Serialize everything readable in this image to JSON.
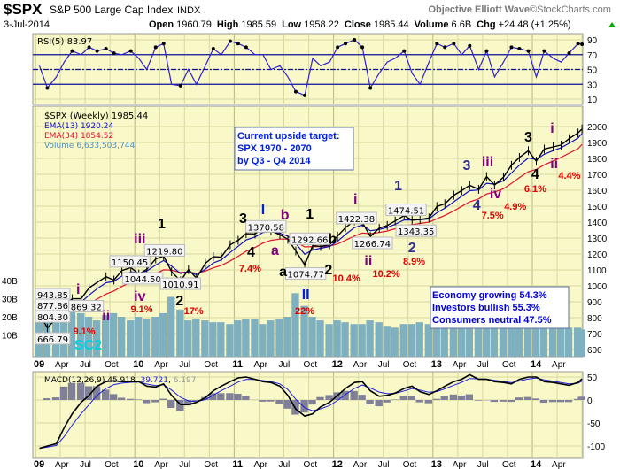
{
  "header": {
    "symbol": "$SPX",
    "name": "S&P 500 Large Cap Index",
    "exchange": "INDX",
    "brand": "Objective Elliott Wave",
    "brand_suffix": "©StockCharts.com",
    "date": "3-Jul-2014",
    "open_label": "Open",
    "open": "1960.79",
    "high_label": "High",
    "high": "1985.59",
    "low_label": "Low",
    "low": "1958.22",
    "close_label": "Close",
    "close": "1985.44",
    "volume_label": "Volume",
    "volume": "6.6B",
    "chg_label": "Chg",
    "chg": "+24.48 (+1.25%)",
    "up_arrow_icon": "triangle-up",
    "up_color": "#00aa00"
  },
  "colors": {
    "panel_bg": "#f8f8c8",
    "grid": "#d8d8a0",
    "price": "#000000",
    "ema13": "#1010c0",
    "ema34": "#e01030",
    "volume": "#7fb0c0",
    "rsi": "#3020d0",
    "macd": "#000000",
    "signal": "#2020e0",
    "histogram": "#808098",
    "wave_red": "#e00000",
    "wave_purple": "#800080",
    "wave_blue": "#0020e0",
    "wave_navy": "#303090",
    "wave_cyan": "#00d0e0"
  },
  "chart_data": [
    {
      "type": "line",
      "panel": "rsi",
      "legend": "RSI(5) 83.97",
      "ylim": [
        0,
        100
      ],
      "yticks": [
        "90",
        "70",
        "50",
        "30",
        "10"
      ],
      "reference_lines": [
        70,
        50,
        30
      ],
      "x": [
        2009.04,
        2009.12,
        2009.21,
        2009.29,
        2009.37,
        2009.46,
        2009.54,
        2009.62,
        2009.71,
        2009.79,
        2009.87,
        2009.96,
        2010.04,
        2010.12,
        2010.21,
        2010.29,
        2010.37,
        2010.46,
        2010.54,
        2010.62,
        2010.71,
        2010.79,
        2010.87,
        2010.96,
        2011.04,
        2011.12,
        2011.21,
        2011.29,
        2011.37,
        2011.46,
        2011.54,
        2011.62,
        2011.71,
        2011.79,
        2011.87,
        2011.96,
        2012.04,
        2012.12,
        2012.21,
        2012.29,
        2012.37,
        2012.46,
        2012.54,
        2012.62,
        2012.71,
        2012.79,
        2012.87,
        2012.96,
        2013.04,
        2013.12,
        2013.21,
        2013.29,
        2013.37,
        2013.46,
        2013.54,
        2013.62,
        2013.71,
        2013.79,
        2013.87,
        2013.96,
        2014.04,
        2014.12,
        2014.21,
        2014.29,
        2014.37,
        2014.46,
        2014.5
      ],
      "values": [
        55,
        25,
        40,
        60,
        75,
        70,
        80,
        75,
        78,
        72,
        70,
        75,
        65,
        50,
        80,
        85,
        30,
        28,
        50,
        30,
        55,
        78,
        70,
        88,
        85,
        80,
        70,
        70,
        50,
        55,
        40,
        20,
        15,
        65,
        55,
        60,
        80,
        85,
        90,
        80,
        25,
        45,
        60,
        65,
        75,
        45,
        30,
        60,
        85,
        80,
        85,
        70,
        82,
        50,
        75,
        40,
        60,
        80,
        78,
        75,
        40,
        75,
        65,
        60,
        72,
        85,
        84
      ]
    },
    {
      "type": "line",
      "panel": "price",
      "title": "$SPX (Weekly) 1985.44",
      "legend": [
        {
          "name": "EMA(13) 1920.24",
          "color": "#1010c0"
        },
        {
          "name": "EMA(34) 1854.52",
          "color": "#e01030"
        },
        {
          "name": "Volume 6,633,503,744",
          "color": "#5090c0"
        }
      ],
      "yscale": "linear",
      "ylim": [
        560,
        2080
      ],
      "yticks": [
        "2000",
        "1900",
        "1800",
        "1700",
        "1600",
        "1500",
        "1400",
        "1300",
        "1200",
        "1100",
        "1000",
        "900",
        "800",
        "700",
        "600"
      ],
      "volume_ticks": [
        "40B",
        "30B",
        "20B",
        "10B"
      ],
      "xticks": [
        "09",
        "Apr",
        "Jul",
        "Oct",
        "10",
        "Apr",
        "Jul",
        "Oct",
        "11",
        "Apr",
        "Jul",
        "Oct",
        "12",
        "Apr",
        "Jul",
        "Oct",
        "13",
        "Apr",
        "Jul",
        "Oct",
        "14",
        "Apr"
      ],
      "x": [
        2009.04,
        2009.12,
        2009.21,
        2009.29,
        2009.37,
        2009.46,
        2009.54,
        2009.62,
        2009.71,
        2009.79,
        2009.87,
        2009.96,
        2010.04,
        2010.12,
        2010.21,
        2010.29,
        2010.37,
        2010.46,
        2010.54,
        2010.62,
        2010.71,
        2010.79,
        2010.87,
        2010.96,
        2011.04,
        2011.12,
        2011.21,
        2011.29,
        2011.37,
        2011.46,
        2011.54,
        2011.62,
        2011.71,
        2011.79,
        2011.87,
        2011.96,
        2012.04,
        2012.12,
        2012.21,
        2012.29,
        2012.37,
        2012.46,
        2012.54,
        2012.62,
        2012.71,
        2012.79,
        2012.87,
        2012.96,
        2013.04,
        2013.12,
        2013.21,
        2013.29,
        2013.37,
        2013.46,
        2013.54,
        2013.62,
        2013.71,
        2013.79,
        2013.87,
        2013.96,
        2014.04,
        2014.12,
        2014.21,
        2014.29,
        2014.37,
        2014.46,
        2014.5
      ],
      "close": [
        826,
        735,
        798,
        873,
        919,
        919,
        987,
        1021,
        1057,
        1036,
        1096,
        1115,
        1074,
        1104,
        1169,
        1187,
        1089,
        1031,
        1102,
        1049,
        1141,
        1183,
        1181,
        1258,
        1286,
        1327,
        1326,
        1364,
        1345,
        1321,
        1292,
        1219,
        1131,
        1253,
        1247,
        1258,
        1312,
        1366,
        1408,
        1398,
        1310,
        1362,
        1379,
        1407,
        1441,
        1412,
        1416,
        1426,
        1498,
        1515,
        1569,
        1598,
        1631,
        1606,
        1686,
        1633,
        1682,
        1757,
        1806,
        1848,
        1783,
        1859,
        1872,
        1884,
        1924,
        1960,
        1985
      ],
      "volume_billions": [
        30,
        33,
        35,
        28,
        26,
        22,
        20,
        18,
        21,
        22,
        20,
        18,
        20,
        19,
        20,
        22,
        31,
        24,
        18,
        19,
        18,
        17,
        17,
        16,
        18,
        19,
        19,
        16,
        18,
        19,
        20,
        33,
        26,
        20,
        18,
        16,
        18,
        17,
        16,
        16,
        18,
        17,
        15,
        14,
        16,
        16,
        17,
        16,
        16,
        16,
        17,
        16,
        17,
        18,
        15,
        15,
        16,
        15,
        15,
        14,
        17,
        16,
        15,
        15,
        14,
        14,
        13
      ],
      "pivots": [
        {
          "label": "943.85",
          "x": 2009.02,
          "y": 943.85
        },
        {
          "label": "877.86",
          "x": 2009.0,
          "y": 877.86
        },
        {
          "label": "804.30",
          "x": 2009.0,
          "y": 804.3
        },
        {
          "label": "666.79",
          "x": 2009.09,
          "y": 666.79
        },
        {
          "label": "869.32",
          "x": 2009.51,
          "y": 869.32
        },
        {
          "label": "1150.45",
          "x": 2009.95,
          "y": 1150.45
        },
        {
          "label": "1044.50",
          "x": 2010.08,
          "y": 1044.5
        },
        {
          "label": "1219.80",
          "x": 2010.3,
          "y": 1219.8
        },
        {
          "label": "1010.91",
          "x": 2010.46,
          "y": 1010.91
        },
        {
          "label": "1370.58",
          "x": 2011.32,
          "y": 1370.58
        },
        {
          "label": "1292.66",
          "x": 2011.76,
          "y": 1292.66
        },
        {
          "label": "1074.77",
          "x": 2011.72,
          "y": 1074.77
        },
        {
          "label": "1422.38",
          "x": 2012.23,
          "y": 1422.38
        },
        {
          "label": "1266.74",
          "x": 2012.39,
          "y": 1266.74
        },
        {
          "label": "1474.51",
          "x": 2012.73,
          "y": 1474.51
        },
        {
          "label": "1343.35",
          "x": 2012.83,
          "y": 1343.35
        }
      ],
      "annotations": [
        {
          "text": "i",
          "x": 2009.43,
          "y": 950,
          "color": "wave_purple"
        },
        {
          "text": "ii",
          "x": 2009.47,
          "y": 783,
          "color": "wave_purple"
        },
        {
          "text": "9.1%",
          "x": 2009.49,
          "y": 694,
          "color": "wave_red",
          "small": true
        },
        {
          "text": "SC2",
          "x": 2009.53,
          "y": 600,
          "color": "wave_cyan"
        },
        {
          "text": "iii",
          "x": 2010.05,
          "y": 1267,
          "color": "wave_purple"
        },
        {
          "text": "iv",
          "x": 2010.05,
          "y": 906,
          "color": "wave_purple"
        },
        {
          "text": "9.1%",
          "x": 2010.07,
          "y": 833,
          "color": "wave_red",
          "small": true
        },
        {
          "text": "1",
          "x": 2010.27,
          "y": 1361,
          "color": "price"
        },
        {
          "text": "2",
          "x": 2010.45,
          "y": 878,
          "color": "price"
        },
        {
          "text": "17%",
          "x": 2010.45,
          "y": 822,
          "color": "wave_red",
          "small": true
        },
        {
          "text": "3",
          "x": 2011.09,
          "y": 1394,
          "color": "price"
        },
        {
          "text": "I",
          "x": 2011.29,
          "y": 1450,
          "color": "wave_blue"
        },
        {
          "text": "b",
          "x": 2011.51,
          "y": 1417,
          "color": "wave_purple"
        },
        {
          "text": "a",
          "x": 2011.41,
          "y": 1194,
          "color": "wave_purple"
        },
        {
          "text": "4",
          "x": 2011.17,
          "y": 1183,
          "color": "price"
        },
        {
          "text": "7.4%",
          "x": 2011.16,
          "y": 1089,
          "color": "wave_red",
          "small": true
        },
        {
          "text": "1",
          "x": 2011.76,
          "y": 1422,
          "color": "price"
        },
        {
          "text": "b",
          "x": 2011.65,
          "y": 1267,
          "color": "price"
        },
        {
          "text": "a",
          "x": 2011.51,
          "y": 1061,
          "color": "price"
        },
        {
          "text": "2",
          "x": 2011.85,
          "y": 1072,
          "color": "price"
        },
        {
          "text": "10.4%",
          "x": 2011.88,
          "y": 1028,
          "color": "wave_red",
          "small": true
        },
        {
          "text": "II",
          "x": 2011.72,
          "y": 917,
          "color": "wave_blue"
        },
        {
          "text": "22%",
          "x": 2011.71,
          "y": 822,
          "color": "wave_red",
          "small": true
        },
        {
          "text": "i",
          "x": 2012.22,
          "y": 1517,
          "color": "wave_purple"
        },
        {
          "text": "ii",
          "x": 2012.35,
          "y": 1128,
          "color": "wave_purple"
        },
        {
          "text": "10.2%",
          "x": 2012.37,
          "y": 1056,
          "color": "wave_red",
          "small": true
        },
        {
          "text": "1",
          "x": 2012.65,
          "y": 1600,
          "color": "wave_navy"
        },
        {
          "text": "2",
          "x": 2012.79,
          "y": 1211,
          "color": "wave_navy"
        },
        {
          "text": "8.9%",
          "x": 2012.81,
          "y": 1133,
          "color": "wave_red",
          "small": true
        },
        {
          "text": "3",
          "x": 2013.34,
          "y": 1728,
          "color": "wave_navy"
        },
        {
          "text": "4",
          "x": 2013.44,
          "y": 1478,
          "color": "wave_navy"
        },
        {
          "text": "7.5%",
          "x": 2013.44,
          "y": 1422,
          "color": "wave_red",
          "small": true
        },
        {
          "text": "iii",
          "x": 2013.55,
          "y": 1750,
          "color": "wave_purple"
        },
        {
          "text": "iv",
          "x": 2013.63,
          "y": 1550,
          "color": "wave_purple"
        },
        {
          "text": "4.9%",
          "x": 2013.65,
          "y": 1478,
          "color": "wave_red",
          "small": true
        },
        {
          "text": "3",
          "x": 2013.96,
          "y": 1906,
          "color": "price"
        },
        {
          "text": "4",
          "x": 2014.03,
          "y": 1672,
          "color": "price"
        },
        {
          "text": "6.1%",
          "x": 2014.03,
          "y": 1589,
          "color": "wave_red",
          "small": true
        },
        {
          "text": "i",
          "x": 2014.2,
          "y": 1961,
          "color": "wave_purple"
        },
        {
          "text": "ii",
          "x": 2014.22,
          "y": 1739,
          "color": "wave_purple"
        },
        {
          "text": "4.4%",
          "x": 2014.24,
          "y": 1672,
          "color": "wave_red",
          "small": true
        }
      ],
      "target_box": [
        "Current upside target:",
        "SPX 1970 - 2070",
        "by Q3 - Q4 2014"
      ],
      "sentiment_box": [
        "Economy growing 54.3%",
        "Investors bullish 55.3%",
        "Consumers neutral 47.5%"
      ]
    },
    {
      "type": "line",
      "panel": "macd",
      "legend": {
        "name": "MACD(12,26,9)",
        "macd": "45.918",
        "signal": "39.721",
        "hist": "6.197"
      },
      "ylim": [
        -115,
        65
      ],
      "yticks": [
        "50",
        "0",
        "-50",
        "-100"
      ],
      "xticks": [
        "09",
        "Apr",
        "Jul",
        "Oct",
        "10",
        "Apr",
        "Jul",
        "Oct",
        "11",
        "Apr",
        "Jul",
        "Oct",
        "12",
        "Apr",
        "Jul",
        "Oct",
        "13",
        "Apr",
        "Jul",
        "Oct",
        "14",
        "Apr"
      ],
      "x": [
        2009.04,
        2009.12,
        2009.21,
        2009.29,
        2009.37,
        2009.46,
        2009.54,
        2009.62,
        2009.71,
        2009.79,
        2009.87,
        2009.96,
        2010.04,
        2010.12,
        2010.21,
        2010.29,
        2010.37,
        2010.46,
        2010.54,
        2010.62,
        2010.71,
        2010.79,
        2010.87,
        2010.96,
        2011.04,
        2011.12,
        2011.21,
        2011.29,
        2011.37,
        2011.46,
        2011.54,
        2011.62,
        2011.71,
        2011.79,
        2011.87,
        2011.96,
        2012.04,
        2012.12,
        2012.21,
        2012.29,
        2012.37,
        2012.46,
        2012.54,
        2012.62,
        2012.71,
        2012.79,
        2012.87,
        2012.96,
        2013.04,
        2013.12,
        2013.21,
        2013.29,
        2013.37,
        2013.46,
        2013.54,
        2013.62,
        2013.71,
        2013.79,
        2013.87,
        2013.96,
        2014.04,
        2014.12,
        2014.21,
        2014.29,
        2014.37,
        2014.46,
        2014.5
      ],
      "macd": [
        -105,
        -100,
        -95,
        -60,
        -30,
        -5,
        10,
        30,
        40,
        42,
        40,
        40,
        40,
        30,
        28,
        35,
        10,
        -10,
        -10,
        -5,
        5,
        20,
        30,
        40,
        48,
        50,
        45,
        40,
        38,
        30,
        10,
        -20,
        -35,
        -30,
        -15,
        -5,
        10,
        25,
        38,
        40,
        20,
        8,
        10,
        15,
        25,
        30,
        18,
        12,
        20,
        30,
        40,
        45,
        55,
        45,
        45,
        40,
        38,
        35,
        45,
        50,
        50,
        40,
        38,
        35,
        32,
        38,
        46
      ]
    }
  ]
}
